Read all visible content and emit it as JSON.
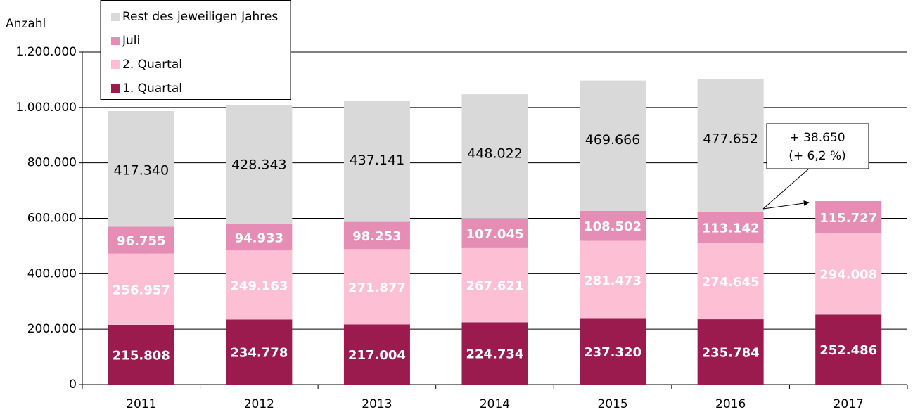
{
  "chart_data": {
    "type": "stacked_bar",
    "y_label": "Anzahl",
    "categories": [
      "2011",
      "2012",
      "2013",
      "2014",
      "2015",
      "2016",
      "2017"
    ],
    "series": [
      {
        "name": "1. Quartal",
        "color": "#9b1b4f",
        "values": [
          215808,
          234778,
          217004,
          224734,
          237320,
          235784,
          252486
        ],
        "value_labels": [
          "215.808",
          "234.778",
          "217.004",
          "224.734",
          "237.320",
          "235.784",
          "252.486"
        ]
      },
      {
        "name": "2. Quartal",
        "color": "#fcbfd4",
        "values": [
          256957,
          249163,
          271877,
          267621,
          281473,
          274645,
          294008
        ],
        "value_labels": [
          "256.957",
          "249.163",
          "271.877",
          "267.621",
          "281.473",
          "274.645",
          "294.008"
        ]
      },
      {
        "name": "Juli",
        "color": "#e58db5",
        "values": [
          96755,
          94933,
          98253,
          107045,
          108502,
          113142,
          115727
        ],
        "value_labels": [
          "96.755",
          "94.933",
          "98.253",
          "107.045",
          "108.502",
          "113.142",
          "115.727"
        ]
      },
      {
        "name": "Rest des jeweiligen Jahres",
        "color": "#d9d9d9",
        "values": [
          417340,
          428343,
          437141,
          448022,
          469666,
          477652,
          null
        ],
        "value_labels": [
          "417.340",
          "428.343",
          "437.141",
          "448.022",
          "469.666",
          "477.652",
          null
        ]
      }
    ],
    "ylim": [
      0,
      1200000
    ],
    "yticks": [
      0,
      {
        "value": 200000,
        "label": "200.000"
      },
      {
        "value": 400000,
        "label": "400.000"
      },
      {
        "value": 600000,
        "label": "600.000"
      },
      {
        "value": 800000,
        "label": "800.000"
      },
      {
        "value": 1000000,
        "label": "1.000.000"
      },
      {
        "value": 1200000,
        "label": "1.200.000"
      }
    ],
    "grid": true,
    "annotation": [
      "+ 38.650",
      "(+ 6,2 %)"
    ]
  }
}
